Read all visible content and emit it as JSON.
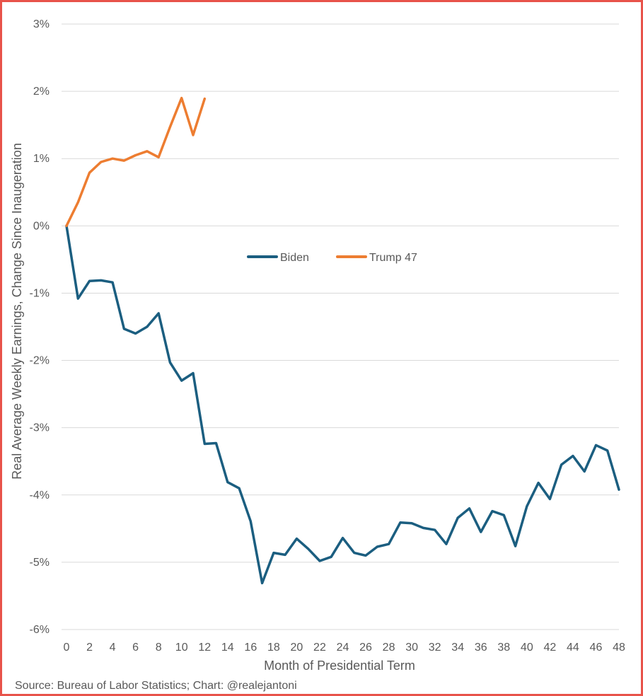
{
  "chart_data": {
    "type": "line",
    "title": "",
    "xlabel": "Month of Presidential Term",
    "ylabel": "Real Average Weekly Earnings, Change Since Inaugeration",
    "xlim": [
      0,
      48
    ],
    "ylim": [
      -6,
      3
    ],
    "x_ticks": [
      0,
      2,
      4,
      6,
      8,
      10,
      12,
      14,
      16,
      18,
      20,
      22,
      24,
      26,
      28,
      30,
      32,
      34,
      36,
      38,
      40,
      42,
      44,
      46,
      48
    ],
    "x_tick_labels": [
      "0",
      "2",
      "4",
      "6",
      "8",
      "10",
      "12",
      "14",
      "16",
      "18",
      "20",
      "22",
      "24",
      "26",
      "28",
      "30",
      "32",
      "34",
      "36",
      "38",
      "40",
      "42",
      "44",
      "46",
      "48"
    ],
    "y_ticks": [
      3,
      2,
      1,
      0,
      -1,
      -2,
      -3,
      -4,
      -5,
      -6
    ],
    "y_tick_labels": [
      "3%",
      "2%",
      "1%",
      "0%",
      "-1%",
      "-2%",
      "-3%",
      "-4%",
      "-5%",
      "-6%"
    ],
    "grid": "horizontal",
    "legend_position": "center",
    "series": [
      {
        "name": "Biden",
        "color": "#1b5e80",
        "x": [
          0,
          1,
          2,
          3,
          4,
          5,
          6,
          7,
          8,
          9,
          10,
          11,
          12,
          13,
          14,
          15,
          16,
          17,
          18,
          19,
          20,
          21,
          22,
          23,
          24,
          25,
          26,
          27,
          28,
          29,
          30,
          31,
          32,
          33,
          34,
          35,
          36,
          37,
          38,
          39,
          40,
          41,
          42,
          43,
          44,
          45,
          46,
          47,
          48
        ],
        "values": [
          0,
          -1.08,
          -0.82,
          -0.81,
          -0.84,
          -1.53,
          -1.6,
          -1.5,
          -1.3,
          -2.03,
          -2.3,
          -2.19,
          -3.24,
          -3.23,
          -3.81,
          -3.9,
          -4.39,
          -5.31,
          -4.86,
          -4.89,
          -4.65,
          -4.8,
          -4.98,
          -4.92,
          -4.64,
          -4.86,
          -4.9,
          -4.77,
          -4.73,
          -4.41,
          -4.42,
          -4.49,
          -4.52,
          -4.73,
          -4.34,
          -4.2,
          -4.55,
          -4.24,
          -4.3,
          -4.76,
          -4.17,
          -3.82,
          -4.06,
          -3.55,
          -3.42,
          -3.65,
          -3.26,
          -3.34,
          -3.92
        ]
      },
      {
        "name": "Trump 47",
        "color": "#ed7d31",
        "x": [
          0,
          1,
          2,
          3,
          4,
          5,
          6,
          7,
          8,
          9,
          10,
          11,
          12
        ],
        "values": [
          0,
          0.35,
          0.79,
          0.95,
          1.0,
          0.97,
          1.05,
          1.11,
          1.02,
          1.47,
          1.9,
          1.35,
          1.89
        ]
      }
    ]
  },
  "source_note": "Source: Bureau of Labor Statistics; Chart: @realejantoni"
}
